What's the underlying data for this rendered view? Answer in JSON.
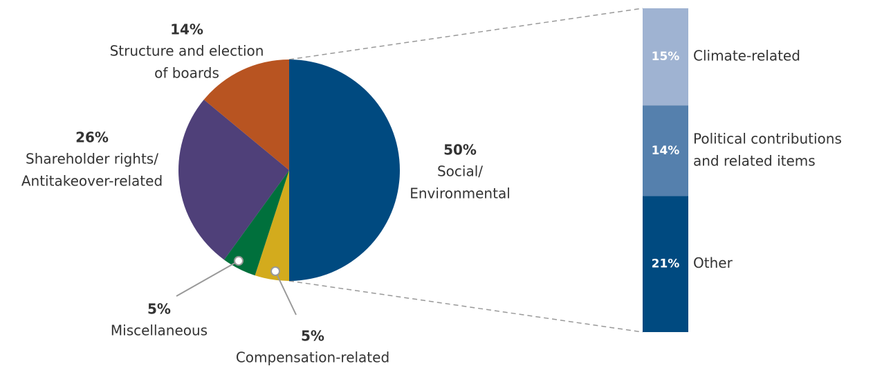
{
  "chart_data": {
    "type": "pie-of-bar",
    "categories": [
      [
        "Social/",
        "Environmental"
      ],
      [
        "Compensation-related"
      ],
      [
        "Miscellaneous"
      ],
      [
        "Shareholder rights/",
        "Antitakeover-related"
      ],
      [
        "Structure and election",
        "of boards"
      ]
    ],
    "values": [
      50,
      5,
      5,
      26,
      14
    ],
    "value_labels": [
      "50%",
      "5%",
      "5%",
      "26%",
      "14%"
    ],
    "colors": [
      "#004a80",
      "#d3ab1d",
      "#00703c",
      "#4f4079",
      "#b85421"
    ],
    "breakdown": {
      "of": 0,
      "categories": [
        [
          "Climate-related"
        ],
        [
          "Political contributions",
          "and related items"
        ],
        [
          "Other"
        ]
      ],
      "values": [
        15,
        14,
        21
      ],
      "value_labels": [
        "15%",
        "14%",
        "21%"
      ],
      "colors": [
        "#9fb3d2",
        "#5580ad",
        "#004a80"
      ]
    }
  }
}
